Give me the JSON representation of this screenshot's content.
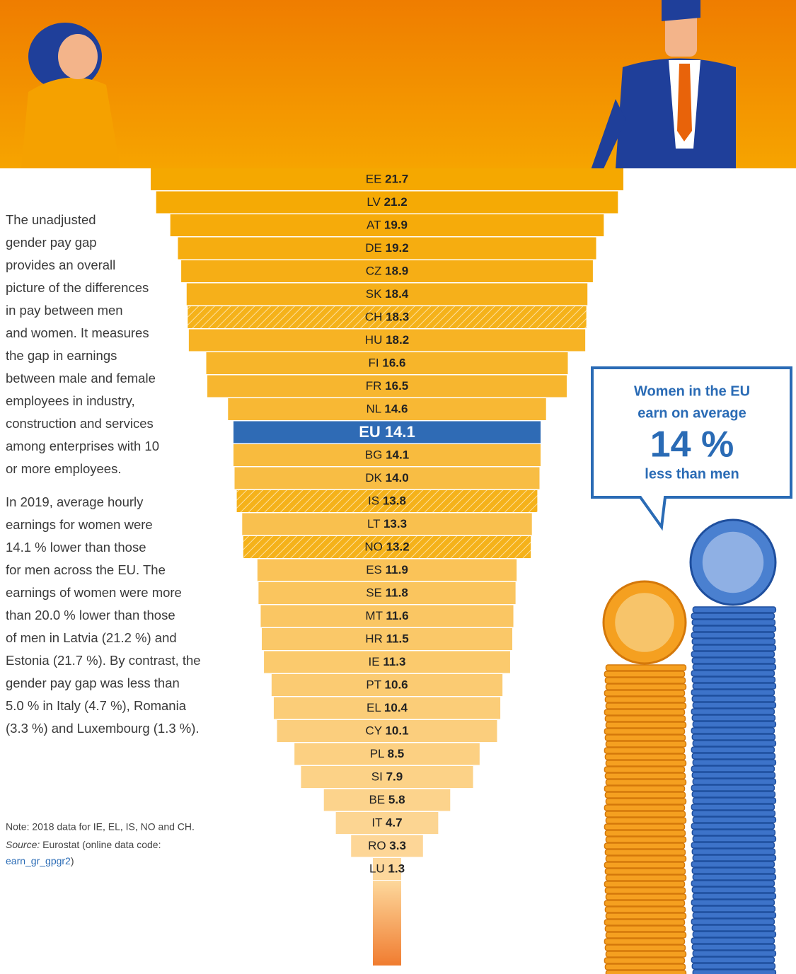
{
  "chart_data": {
    "type": "bar",
    "categories": [
      "EE",
      "LV",
      "AT",
      "DE",
      "CZ",
      "SK",
      "CH",
      "HU",
      "FI",
      "FR",
      "NL",
      "EU",
      "BG",
      "DK",
      "IS",
      "LT",
      "NO",
      "ES",
      "SE",
      "MT",
      "HR",
      "IE",
      "PT",
      "EL",
      "CY",
      "PL",
      "SI",
      "BE",
      "IT",
      "RO",
      "LU"
    ],
    "values": [
      21.7,
      21.2,
      19.9,
      19.2,
      18.9,
      18.4,
      18.3,
      18.2,
      16.6,
      16.5,
      14.6,
      14.1,
      14.1,
      14.0,
      13.8,
      13.3,
      13.2,
      11.9,
      11.8,
      11.6,
      11.5,
      11.3,
      10.6,
      10.4,
      10.1,
      8.5,
      7.9,
      5.8,
      4.7,
      3.3,
      1.3
    ],
    "value_labels": [
      "21.7",
      "21.2",
      "19.9",
      "19.2",
      "18.9",
      "18.4",
      "18.3",
      "18.2",
      "16.6",
      "16.5",
      "14.6",
      "14.1",
      "14.1",
      "14.0",
      "13.8",
      "13.3",
      "13.2",
      "11.9",
      "11.8",
      "11.6",
      "11.5",
      "11.3",
      "10.6",
      "10.4",
      "10.1",
      "8.5",
      "7.9",
      "5.8",
      "4.7",
      "3.3",
      "1.3"
    ],
    "hatched": [
      false,
      false,
      false,
      false,
      false,
      false,
      true,
      false,
      false,
      false,
      false,
      false,
      false,
      false,
      true,
      false,
      true,
      false,
      false,
      false,
      false,
      false,
      false,
      false,
      false,
      false,
      false,
      false,
      false,
      false,
      false
    ],
    "highlight": [
      false,
      false,
      false,
      false,
      false,
      false,
      false,
      false,
      false,
      false,
      false,
      true,
      false,
      false,
      false,
      false,
      false,
      false,
      false,
      false,
      false,
      false,
      false,
      false,
      false,
      false,
      false,
      false,
      false,
      false,
      false
    ],
    "xlim": [
      0,
      21.7
    ],
    "color": "#f5a800",
    "color_light": "#fdd89c",
    "highlight_color": "#2f6bb5"
  },
  "text": {
    "paragraphs": [
      [
        "The unadjusted",
        "gender pay gap",
        "provides an overall",
        "picture of the differences",
        "in pay between men",
        "and women. It measures",
        "the gap in earnings",
        "between male and female",
        "employees in industry,",
        "construction and services",
        "among enterprises with 10",
        "or more employees."
      ],
      [
        "In 2019, average hourly",
        "earnings for women were",
        "14.1 % lower than those",
        "for men across the EU. The",
        "earnings of women were more",
        "than 20.0 % lower than those",
        "of men in Latvia (21.2 %) and",
        "Estonia (21.7 %). By contrast, the",
        "gender pay gap was less than",
        "5.0 % in Italy (4.7 %), Romania",
        "(3.3 %) and Luxembourg (1.3 %)."
      ]
    ],
    "note": "Note: 2018 data for IE, EL, IS, NO and CH.",
    "source": {
      "label": "Source:",
      "text": "Eurostat (online data code:",
      "code": "earn_gr_gpgr2",
      "close": ")"
    }
  },
  "callout": {
    "line1": "Women in the EU",
    "line2": "earn on average",
    "big": "14 %",
    "line3": "less than men"
  }
}
